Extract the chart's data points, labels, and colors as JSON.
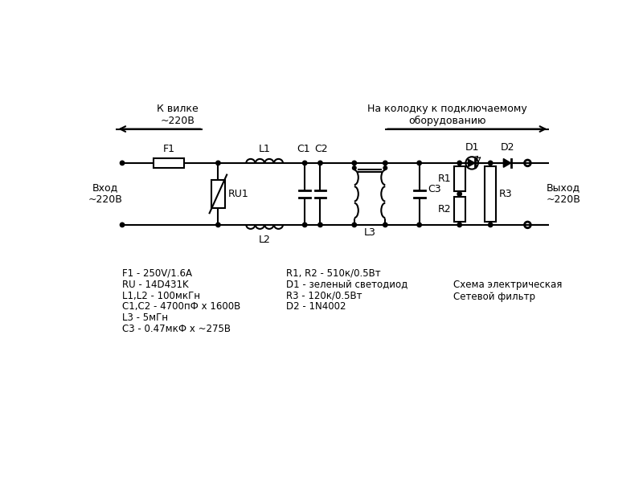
{
  "bg_color": "#ffffff",
  "line_color": "#000000",
  "lw": 1.5,
  "title_left": "К вилке\n~220В",
  "title_right": "На колодку к подключаемому\nоборудованию",
  "label_input": "Вход\n~220В",
  "label_output": "Выход\n~220В",
  "bom_lines": [
    "F1 - 250V/1.6A",
    "RU - 14D431K",
    "L1,L2 - 100мкГн",
    "С1,С2 - 4700пФ х 1600В",
    "L3 - 5мГн",
    "С3 - 0.47мкФ х ~275В"
  ],
  "bom_lines2": [
    "R1, R2 - 510к/0.5Вт",
    "D1 - зеленый светодиод",
    "R3 - 120к/0.5Вт",
    "D2 - 1N4002"
  ],
  "bom_title": "Схема электрическая\nСетевой фильтр"
}
